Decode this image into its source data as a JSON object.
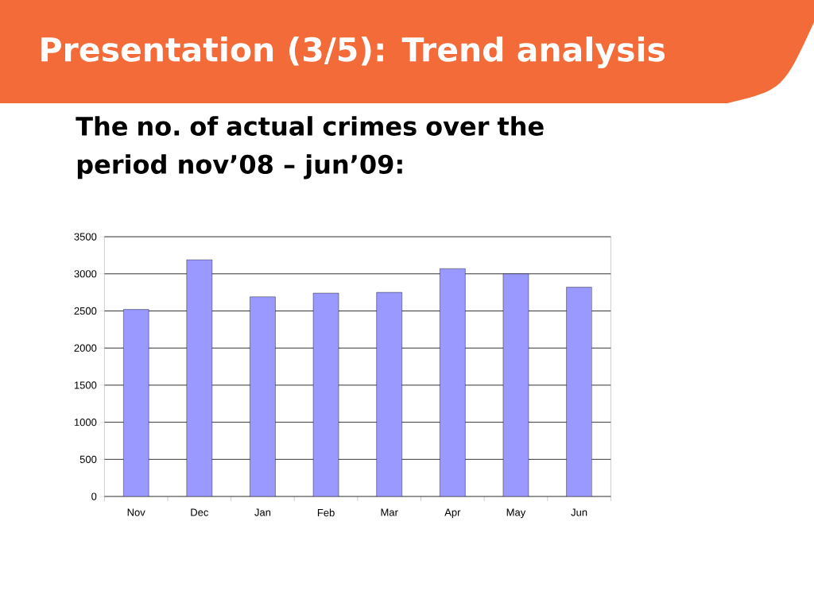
{
  "chart_data": {
    "type": "bar",
    "title": "Presentation (3/5): Trend analysis",
    "subtitle": "The no. of actual crimes over the period nov’08 – jun’09:",
    "categories": [
      "Nov",
      "Dec",
      "Jan",
      "Feb",
      "Mar",
      "Apr",
      "May",
      "Jun"
    ],
    "values": [
      2520,
      3190,
      2690,
      2740,
      2750,
      3070,
      3000,
      2820
    ],
    "color": "#9999ff",
    "ylim": [
      0,
      3500
    ],
    "yticks": [
      0,
      500,
      1000,
      1500,
      2000,
      2500,
      3000,
      3500
    ],
    "grid": "y"
  }
}
